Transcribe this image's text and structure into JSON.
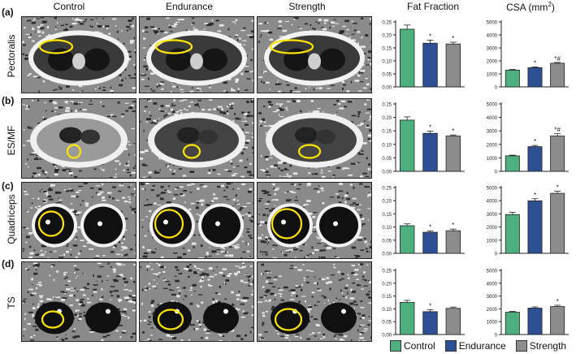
{
  "columns": {
    "control": "Control",
    "endurance": "Endurance",
    "strength": "Strength",
    "fat_fraction": "Fat Fraction",
    "csa_prefix": "CSA (mm",
    "csa_sup": "2",
    "csa_suffix": ")"
  },
  "rows": [
    {
      "label": "(a)",
      "name": "Pectoralis"
    },
    {
      "label": "(b)",
      "name": "ES/MF"
    },
    {
      "label": "(c)",
      "name": "Quadriceps"
    },
    {
      "label": "(d)",
      "name": "TS"
    }
  ],
  "legend": [
    {
      "name": "Control",
      "color": "#4caf7d"
    },
    {
      "name": "Endurance",
      "color": "#2d4f94"
    },
    {
      "name": "Strength",
      "color": "#8c8c8c"
    }
  ],
  "chart_data": [
    {
      "type": "bar",
      "row": "Pectoralis",
      "metric": "Fat Fraction",
      "categories": [
        "Control",
        "Endurance",
        "Strength"
      ],
      "values": [
        0.222,
        0.168,
        0.165
      ],
      "errors": [
        0.016,
        0.012,
        0.007
      ],
      "annotations": [
        "",
        "*",
        "*"
      ],
      "ylim": [
        0,
        0.25
      ],
      "yticks": [
        "0.00",
        "0.05",
        "0.10",
        "0.15",
        "0.20",
        "0.25"
      ]
    },
    {
      "type": "bar",
      "row": "Pectoralis",
      "metric": "CSA (mm2)",
      "categories": [
        "Control",
        "Endurance",
        "Strength"
      ],
      "values": [
        1290,
        1480,
        1820
      ],
      "errors": [
        50,
        60,
        60
      ],
      "annotations": [
        "",
        "*",
        "*#"
      ],
      "ylim": [
        0,
        5000
      ],
      "yticks": [
        "0",
        "1000",
        "2000",
        "3000",
        "4000",
        "5000"
      ]
    },
    {
      "type": "bar",
      "row": "ES/MF",
      "metric": "Fat Fraction",
      "categories": [
        "Control",
        "Endurance",
        "Strength"
      ],
      "values": [
        0.19,
        0.141,
        0.131
      ],
      "errors": [
        0.012,
        0.008,
        0.004
      ],
      "annotations": [
        "",
        "*",
        "*"
      ],
      "ylim": [
        0,
        0.25
      ],
      "yticks": [
        "0.00",
        "0.05",
        "0.10",
        "0.15",
        "0.20",
        "0.25"
      ]
    },
    {
      "type": "bar",
      "row": "ES/MF",
      "metric": "CSA (mm2)",
      "categories": [
        "Control",
        "Endurance",
        "Strength"
      ],
      "values": [
        1150,
        1830,
        2620
      ],
      "errors": [
        50,
        90,
        170
      ],
      "annotations": [
        "",
        "*",
        "*#"
      ],
      "ylim": [
        0,
        5000
      ],
      "yticks": [
        "0",
        "1000",
        "2000",
        "3000",
        "4000",
        "5000"
      ]
    },
    {
      "type": "bar",
      "row": "Quadriceps",
      "metric": "Fat Fraction",
      "categories": [
        "Control",
        "Endurance",
        "Strength"
      ],
      "values": [
        0.105,
        0.08,
        0.086
      ],
      "errors": [
        0.007,
        0.005,
        0.006
      ],
      "annotations": [
        "",
        "*",
        "*"
      ],
      "ylim": [
        0,
        0.25
      ],
      "yticks": [
        "0.00",
        "0.05",
        "0.10",
        "0.15",
        "0.20",
        "0.25"
      ]
    },
    {
      "type": "bar",
      "row": "Quadriceps",
      "metric": "CSA (mm2)",
      "categories": [
        "Control",
        "Endurance",
        "Strength"
      ],
      "values": [
        2950,
        3990,
        4560
      ],
      "errors": [
        170,
        160,
        170
      ],
      "annotations": [
        "",
        "*",
        "*"
      ],
      "ylim": [
        0,
        5000
      ],
      "yticks": [
        "0",
        "1000",
        "2000",
        "3000",
        "4000",
        "5000"
      ]
    },
    {
      "type": "bar",
      "row": "TS",
      "metric": "Fat Fraction",
      "categories": [
        "Control",
        "Endurance",
        "Strength"
      ],
      "values": [
        0.125,
        0.089,
        0.102
      ],
      "errors": [
        0.008,
        0.008,
        0.005
      ],
      "annotations": [
        "",
        "*",
        ""
      ],
      "ylim": [
        0,
        0.25
      ],
      "yticks": [
        "0.00",
        "0.05",
        "0.10",
        "0.15",
        "0.20",
        "0.25"
      ]
    },
    {
      "type": "bar",
      "row": "TS",
      "metric": "CSA (mm2)",
      "categories": [
        "Control",
        "Endurance",
        "Strength"
      ],
      "values": [
        1740,
        2060,
        2180
      ],
      "errors": [
        70,
        90,
        100
      ],
      "annotations": [
        "",
        "",
        "*"
      ],
      "ylim": [
        0,
        5000
      ],
      "yticks": [
        "0",
        "1000",
        "2000",
        "3000",
        "4000",
        "5000"
      ]
    }
  ]
}
